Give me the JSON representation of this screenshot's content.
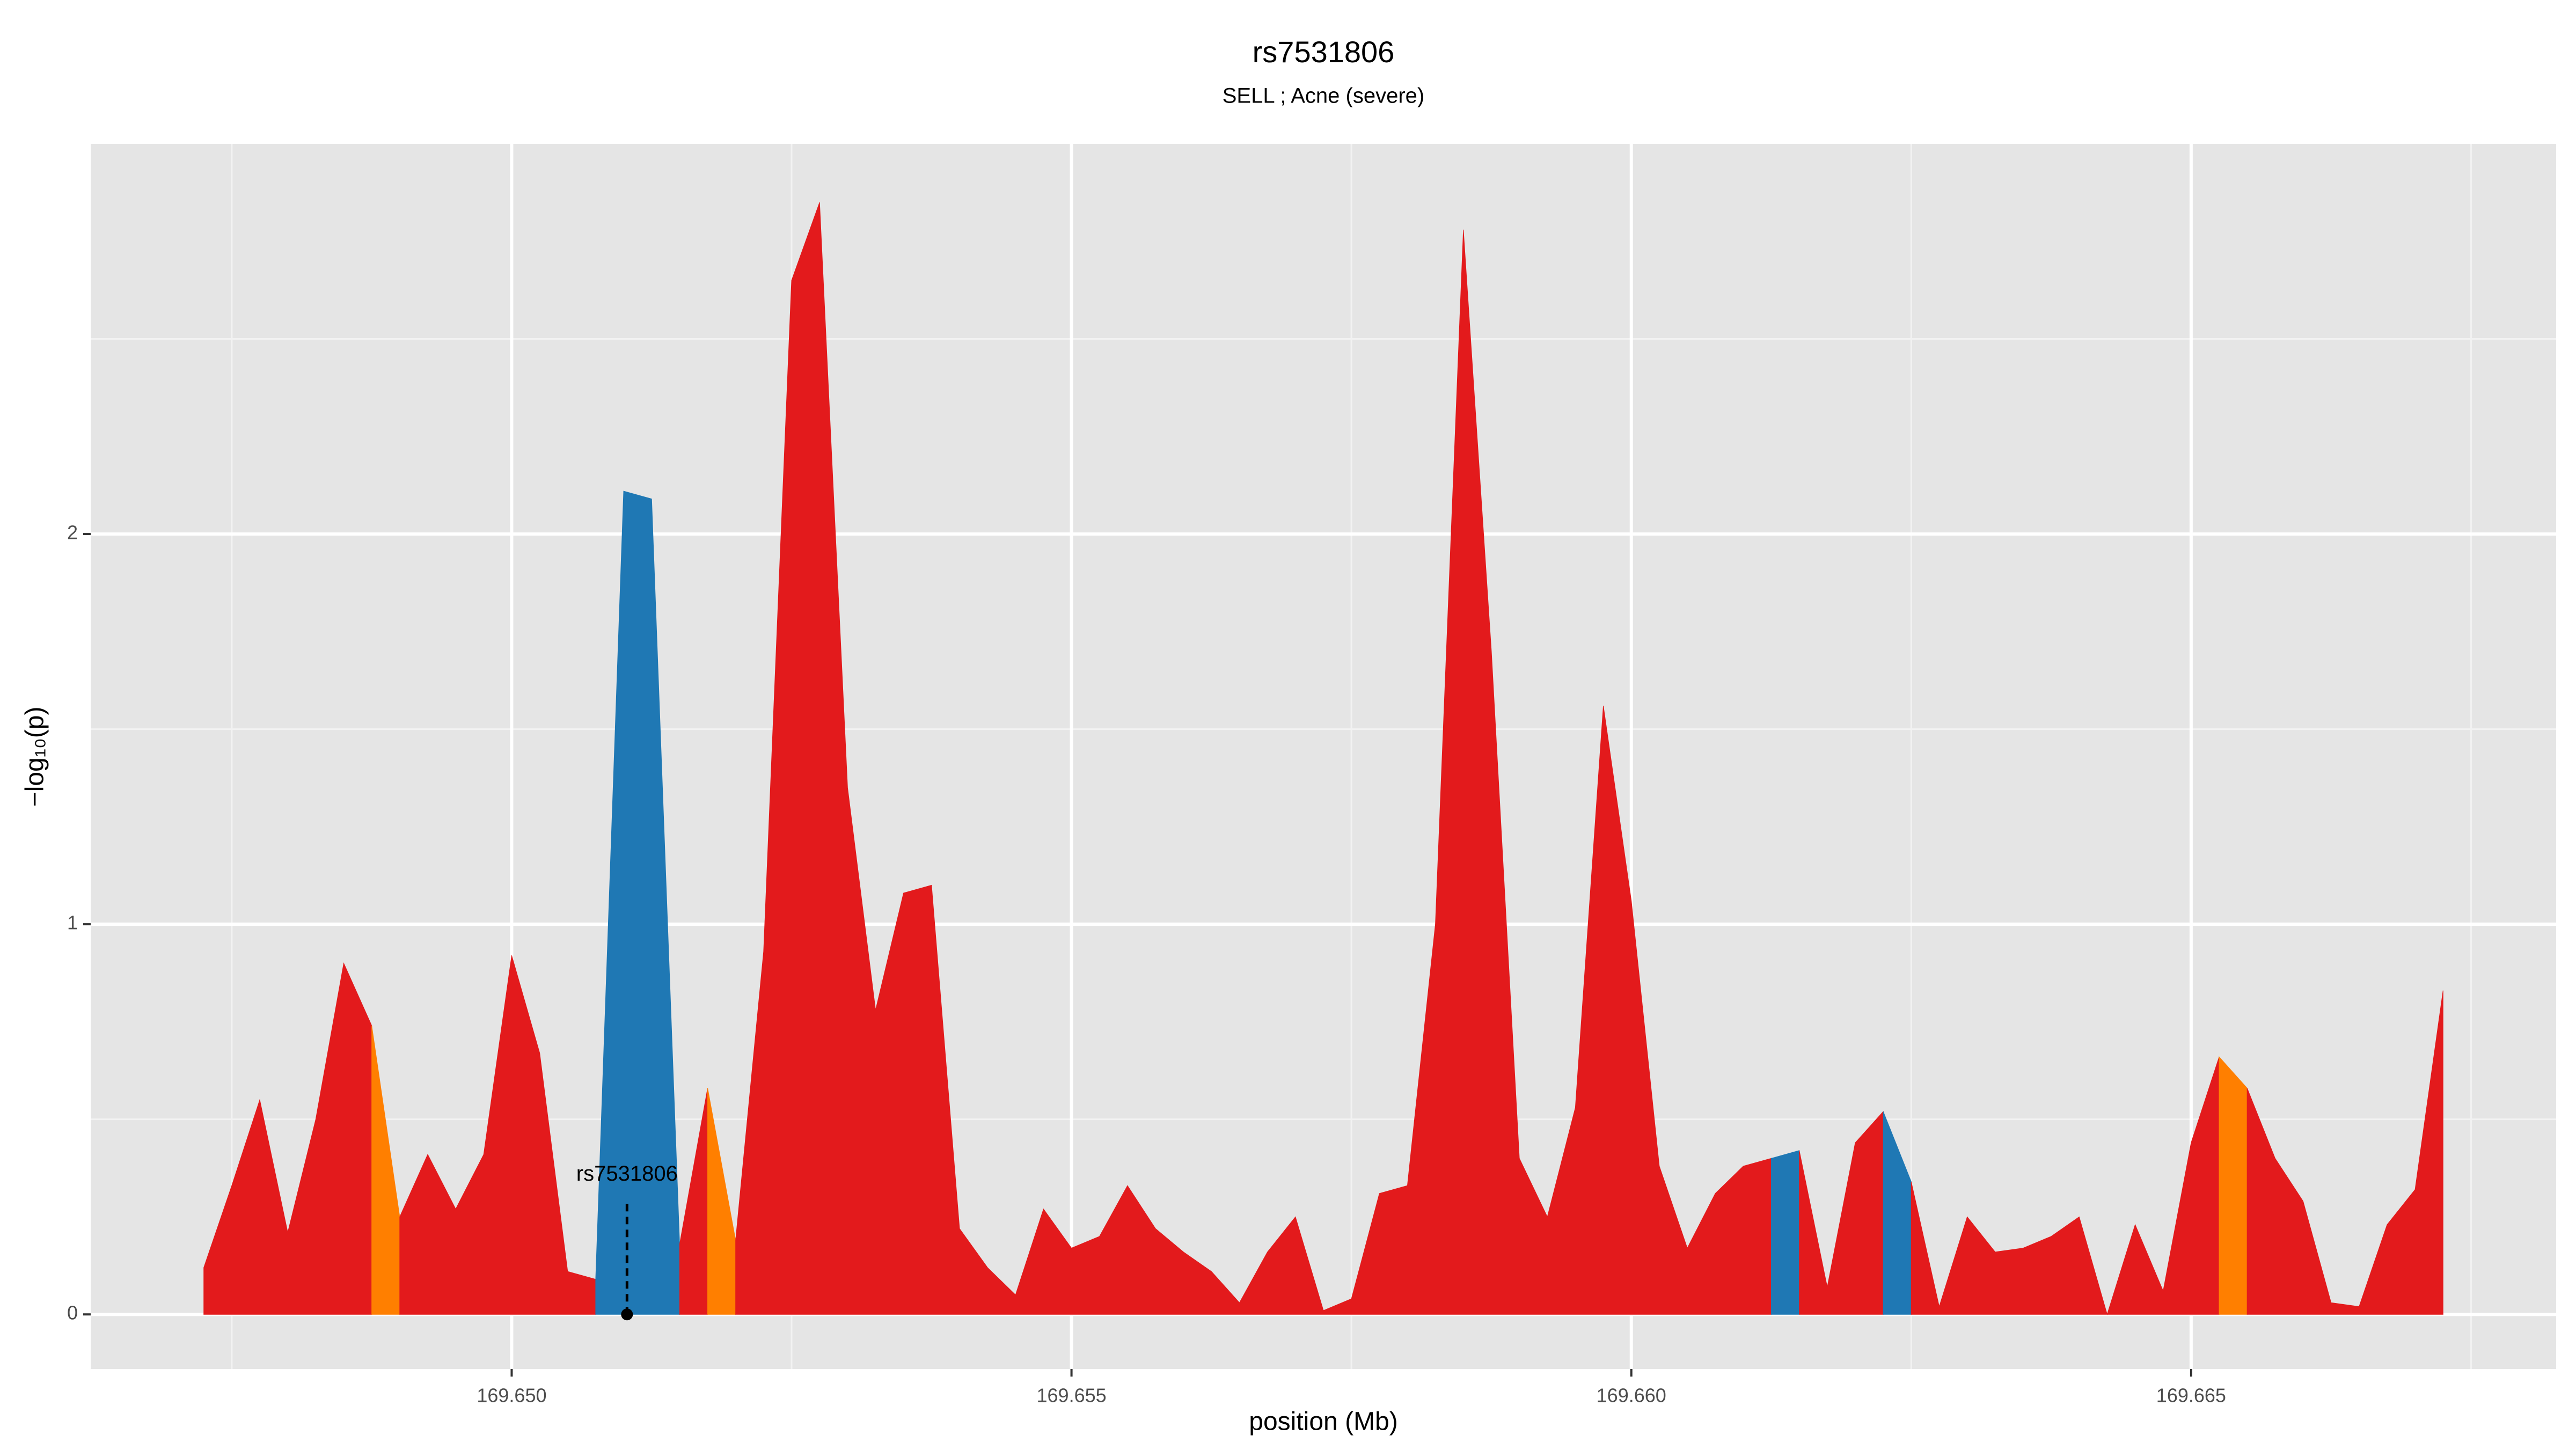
{
  "chart_data": {
    "type": "area",
    "title": "rs7531806",
    "subtitle": "SELL ; Acne (severe)",
    "xlabel": "position (Mb)",
    "ylabel": "−log₁₀(p)",
    "xlim": [
      169.64624,
      169.66826
    ],
    "ylim": [
      -0.14,
      3.0
    ],
    "xticks": [
      {
        "value": 169.65,
        "label": "169.650"
      },
      {
        "value": 169.655,
        "label": "169.655"
      },
      {
        "value": 169.66,
        "label": "169.660"
      },
      {
        "value": 169.665,
        "label": "169.665"
      }
    ],
    "yticks": [
      0,
      1,
      2
    ],
    "x_minor_grid": [
      169.6475,
      169.6525,
      169.6575,
      169.6625,
      169.6675
    ],
    "y_minor_grid": [
      0.5,
      1.5,
      2.5
    ],
    "grid": true,
    "series": [
      {
        "color": "#e31a1c",
        "x": [
          169.64725,
          169.6475,
          169.64775,
          169.648,
          169.64825,
          169.6485,
          169.64875
        ],
        "values": [
          0.12,
          0.33,
          0.55,
          0.21,
          0.5,
          0.9,
          0.74
        ]
      },
      {
        "color": "#ff7f00",
        "x": [
          169.64875,
          169.649
        ],
        "values": [
          0.74,
          0.25
        ]
      },
      {
        "color": "#e31a1c",
        "x": [
          169.649,
          169.64925,
          169.6495,
          169.64975,
          169.65,
          169.65025,
          169.6505,
          169.65075
        ],
        "values": [
          0.25,
          0.41,
          0.27,
          0.41,
          0.92,
          0.67,
          0.11,
          0.09
        ]
      },
      {
        "color": "#1f78b4",
        "x": [
          169.65075,
          169.651,
          169.65125,
          169.6515
        ],
        "values": [
          0.09,
          2.11,
          2.09,
          0.18
        ]
      },
      {
        "color": "#e31a1c",
        "x": [
          169.6515,
          169.65175
        ],
        "values": [
          0.18,
          0.58
        ]
      },
      {
        "color": "#ff7f00",
        "x": [
          169.65175,
          169.652
        ],
        "values": [
          0.58,
          0.19
        ]
      },
      {
        "color": "#e31a1c",
        "x": [
          169.652,
          169.65225,
          169.6525,
          169.65275,
          169.653,
          169.65325,
          169.6535,
          169.65375,
          169.654,
          169.65425,
          169.6545,
          169.65475,
          169.655,
          169.65525,
          169.6555,
          169.65575,
          169.656,
          169.65625,
          169.6565,
          169.65675,
          169.657,
          169.65725,
          169.6575,
          169.65775,
          169.658,
          169.65825,
          169.6585,
          169.65875,
          169.659,
          169.65925,
          169.6595,
          169.65975,
          169.66,
          169.66025,
          169.6605,
          169.66075,
          169.661,
          169.66125
        ],
        "values": [
          0.19,
          0.93,
          2.65,
          2.85,
          1.35,
          0.78,
          1.08,
          1.1,
          0.22,
          0.12,
          0.05,
          0.27,
          0.17,
          0.2,
          0.33,
          0.22,
          0.16,
          0.11,
          0.03,
          0.16,
          0.25,
          0.01,
          0.04,
          0.31,
          0.33,
          1.0,
          2.78,
          1.7,
          0.4,
          0.25,
          0.53,
          1.56,
          1.06,
          0.38,
          0.17,
          0.31,
          0.38,
          0.4
        ]
      },
      {
        "color": "#1f78b4",
        "x": [
          169.66125,
          169.6615
        ],
        "values": [
          0.4,
          0.42
        ]
      },
      {
        "color": "#e31a1c",
        "x": [
          169.6615,
          169.66175,
          169.662,
          169.66225
        ],
        "values": [
          0.42,
          0.07,
          0.44,
          0.52
        ]
      },
      {
        "color": "#1f78b4",
        "x": [
          169.66225,
          169.6625
        ],
        "values": [
          0.52,
          0.34
        ]
      },
      {
        "color": "#e31a1c",
        "x": [
          169.6625,
          169.66275,
          169.663,
          169.66325,
          169.6635,
          169.66375,
          169.664,
          169.66425,
          169.6645,
          169.66475,
          169.665,
          169.66525
        ],
        "values": [
          0.34,
          0.02,
          0.25,
          0.16,
          0.17,
          0.2,
          0.25,
          0.0,
          0.23,
          0.06,
          0.44,
          0.66
        ]
      },
      {
        "color": "#ff7f00",
        "x": [
          169.66525,
          169.6655
        ],
        "values": [
          0.66,
          0.58
        ]
      },
      {
        "color": "#e31a1c",
        "x": [
          169.6655,
          169.66575,
          169.666,
          169.66625,
          169.6665,
          169.66675,
          169.667,
          169.66725
        ],
        "values": [
          0.58,
          0.4,
          0.29,
          0.03,
          0.02,
          0.23,
          0.32,
          0.83
        ]
      }
    ],
    "annotation": {
      "label": "rs7531806",
      "x": 169.65103,
      "y": 0
    }
  }
}
